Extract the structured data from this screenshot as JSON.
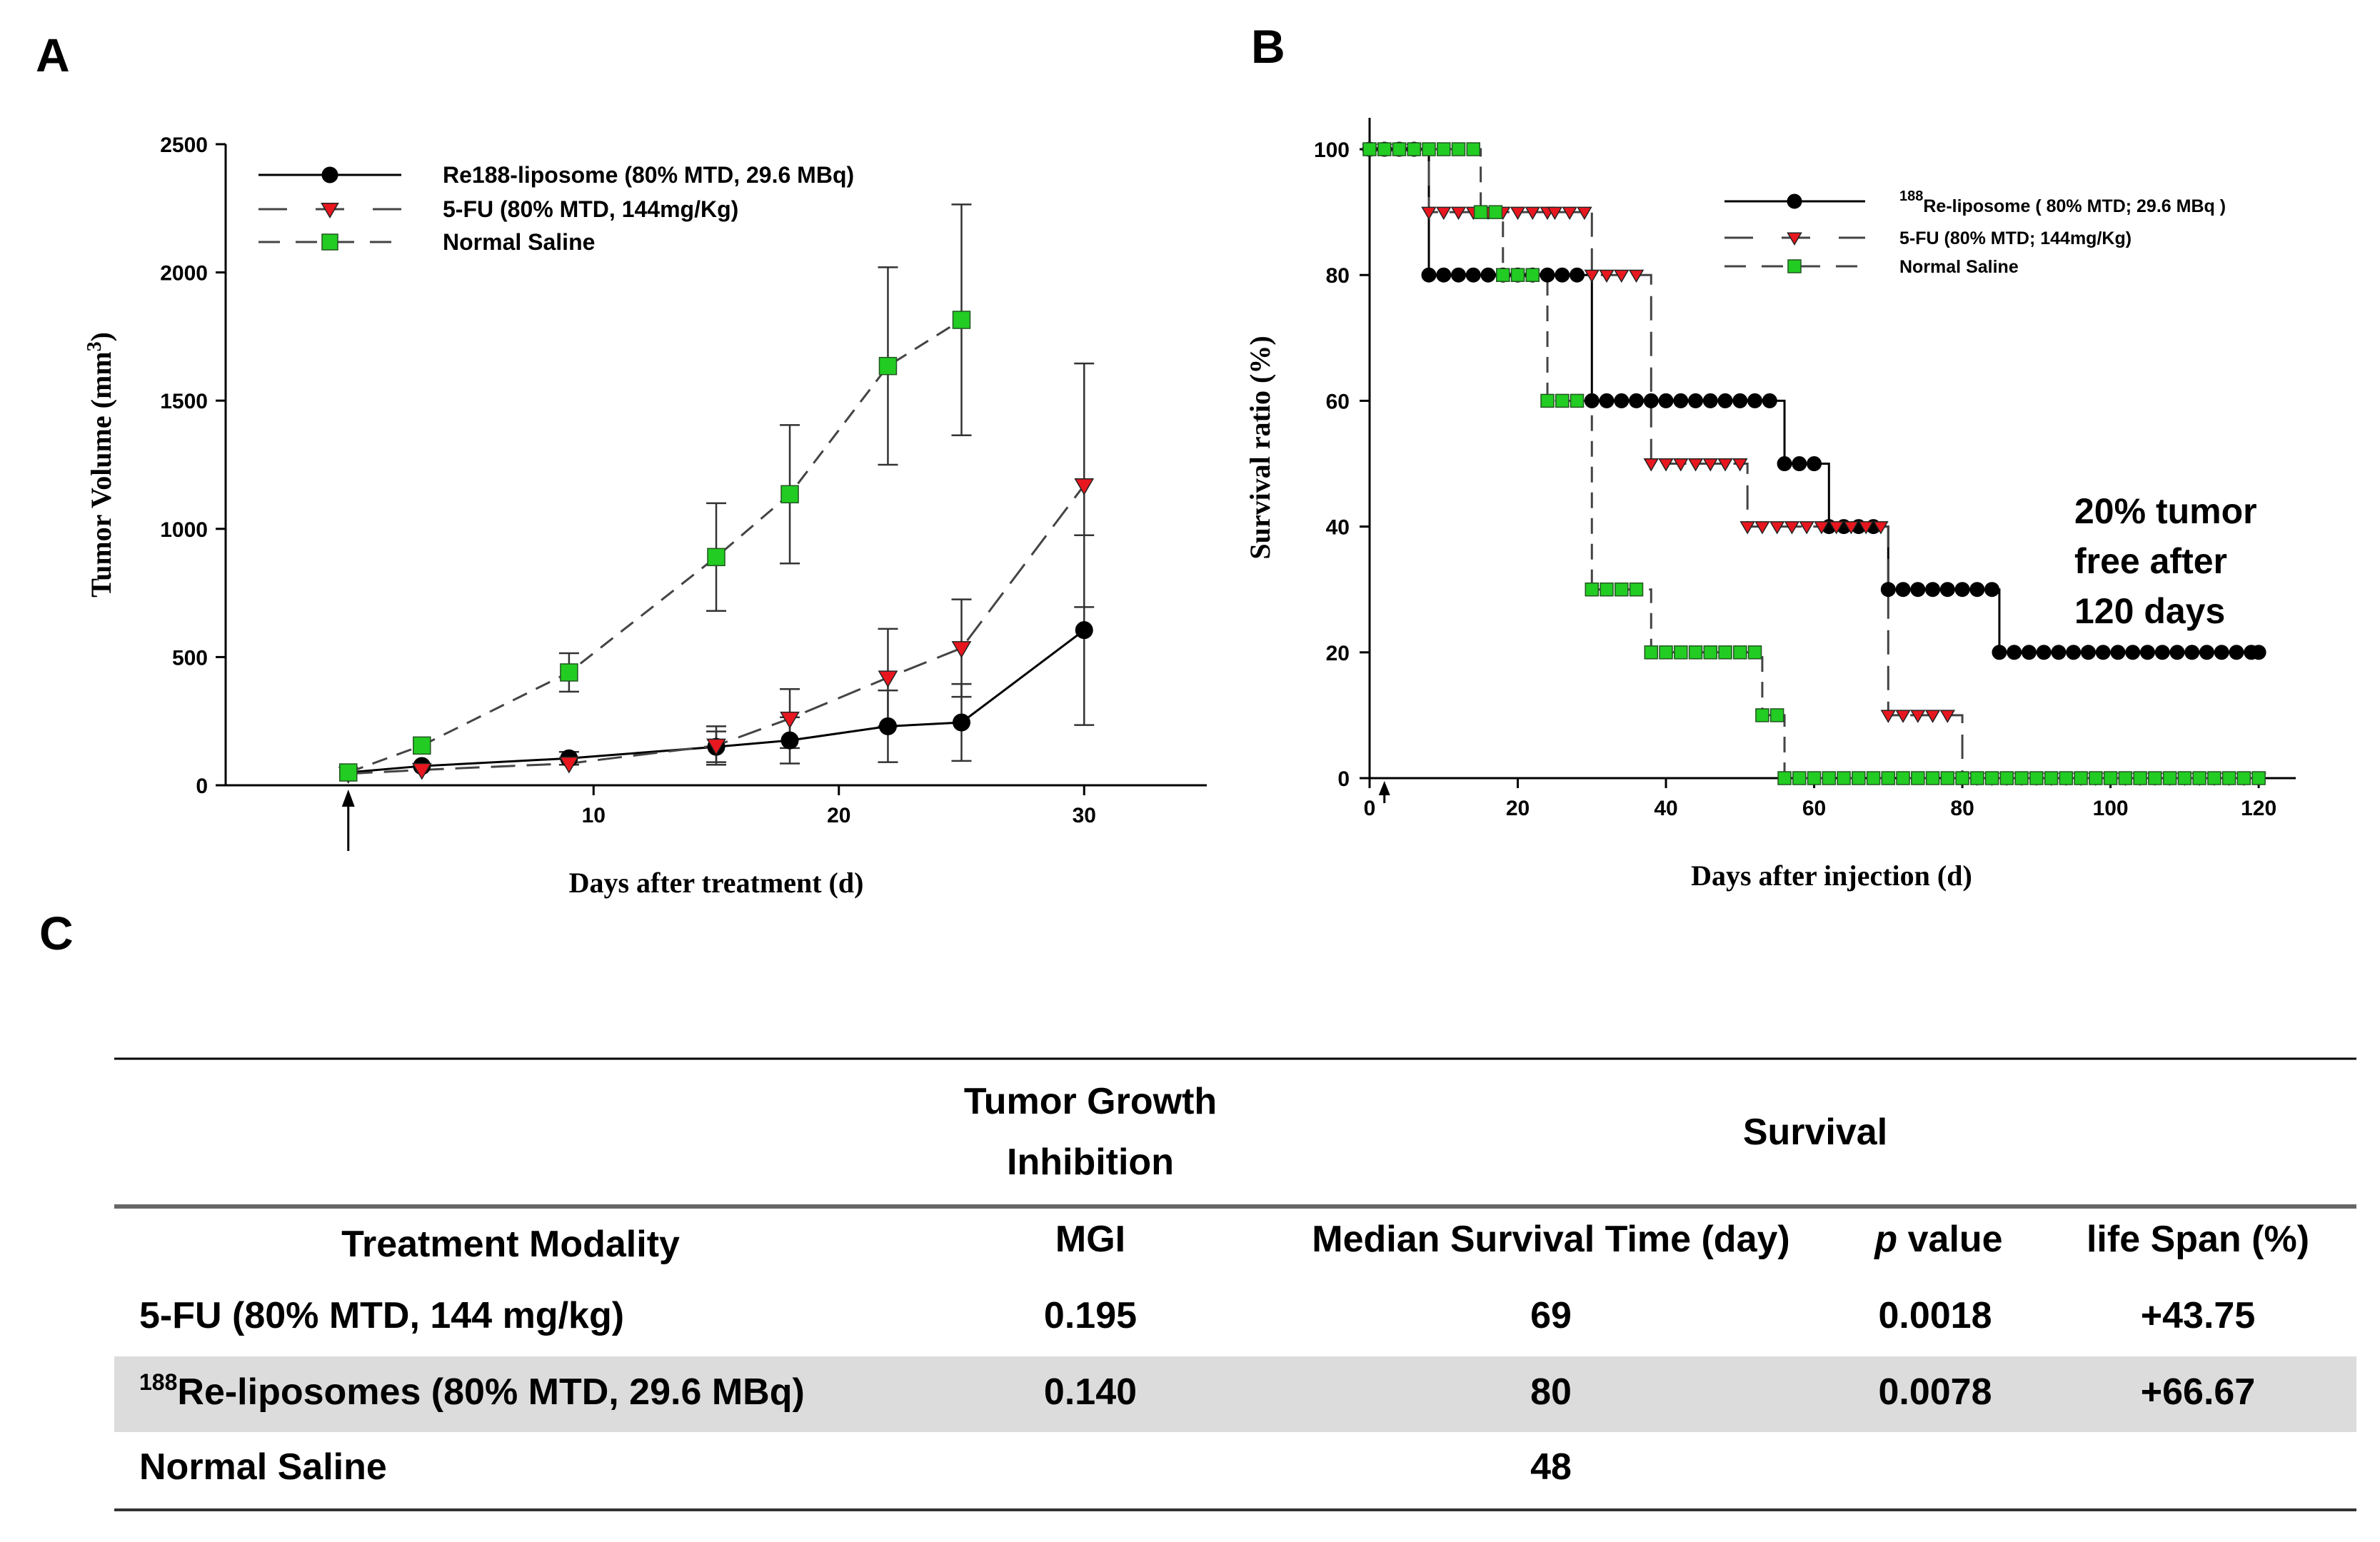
{
  "panel_labels": [
    "A",
    "B",
    "C"
  ],
  "colors": {
    "black": "#000000",
    "red": "#e8171f",
    "green": "#22cc22",
    "gray": "#444444",
    "shade": "#dcdcdc"
  },
  "chart_data": [
    {
      "type": "line",
      "panel": "A",
      "xlabel": "Days after treatment (d)",
      "ylabel_main": "Tumor Volume (mm",
      "ylabel_sup": "3",
      "ylabel_end": ")",
      "xlim": [
        -5,
        35
      ],
      "ylim": [
        0,
        2500
      ],
      "xticks": [
        10,
        20,
        30
      ],
      "yticks": [
        0,
        500,
        1000,
        1500,
        2000,
        2500
      ],
      "arrow_day": 0,
      "series": [
        {
          "name": "Re188-liposome (80% MTD, 29.6 MBq)",
          "marker": "circle",
          "dash": "solid",
          "x": [
            0,
            3,
            9,
            15,
            18,
            22,
            25,
            30
          ],
          "y": [
            50,
            75,
            105,
            150,
            175,
            230,
            245,
            605
          ],
          "err": [
            0,
            0,
            25,
            60,
            90,
            140,
            150,
            370
          ]
        },
        {
          "name": "5-FU (80% MTD, 144mg/Kg)",
          "marker": "triangle",
          "dash": "long",
          "x": [
            0,
            3,
            9,
            15,
            18,
            22,
            25,
            30
          ],
          "y": [
            45,
            60,
            85,
            155,
            260,
            420,
            535,
            1170
          ],
          "err": [
            0,
            0,
            0,
            75,
            115,
            190,
            190,
            475
          ]
        },
        {
          "name": "Normal Saline",
          "marker": "square",
          "dash": "short",
          "x": [
            0,
            3,
            9,
            15,
            18,
            22,
            25
          ],
          "y": [
            50,
            155,
            440,
            890,
            1135,
            1635,
            1815
          ],
          "err": [
            0,
            0,
            75,
            210,
            270,
            385,
            450
          ]
        }
      ]
    },
    {
      "type": "line",
      "panel": "B",
      "xlabel": "Days after injection (d)",
      "ylabel": "Survival ratio (%)",
      "xlim": [
        0,
        125
      ],
      "ylim": [
        0,
        105
      ],
      "xticks": [
        0,
        20,
        40,
        60,
        80,
        100,
        120
      ],
      "yticks": [
        0,
        20,
        40,
        60,
        80,
        100
      ],
      "arrow_day": 2,
      "annotation": [
        "20% tumor",
        "free after",
        "120 days"
      ],
      "series": [
        {
          "name": "Re-liposome ( 80% MTD; 29.6 MBq )",
          "name_sup": "188",
          "marker": "circle",
          "dash": "solid",
          "steps": [
            [
              0,
              100
            ],
            [
              8,
              80
            ],
            [
              30,
              60
            ],
            [
              56,
              50
            ],
            [
              62,
              40
            ],
            [
              70,
              30
            ],
            [
              85,
              20
            ],
            [
              120,
              20
            ]
          ]
        },
        {
          "name": "5-FU (80% MTD; 144mg/Kg)",
          "marker": "triangle",
          "dash": "long",
          "steps": [
            [
              0,
              100
            ],
            [
              8,
              90
            ],
            [
              25,
              90
            ],
            [
              30,
              80
            ],
            [
              38,
              50
            ],
            [
              51,
              40
            ],
            [
              70,
              10
            ],
            [
              80,
              0
            ],
            [
              120,
              0
            ]
          ]
        },
        {
          "name": "Normal Saline",
          "marker": "square",
          "dash": "short",
          "steps": [
            [
              0,
              100
            ],
            [
              15,
              90
            ],
            [
              18,
              80
            ],
            [
              24,
              60
            ],
            [
              30,
              30
            ],
            [
              38,
              20
            ],
            [
              53,
              10
            ],
            [
              56,
              0
            ],
            [
              120,
              0
            ]
          ]
        }
      ]
    }
  ],
  "table": {
    "group_header_left": [
      "Tumor Growth",
      "Inhibition"
    ],
    "group_header_right": "Survival",
    "columns": [
      "Treatment Modality",
      "MGI",
      "Median Survival Time (day)",
      "p",
      "value",
      "life Span (%)"
    ],
    "rows": [
      {
        "treatment": "5-FU (80% MTD, 144 mg/kg)",
        "sup": "",
        "mgi": "0.195",
        "median": "69",
        "p": "0.0018",
        "span": "+43.75"
      },
      {
        "treatment": "Re-liposomes  (80% MTD, 29.6 MBq)",
        "sup": "188",
        "mgi": "0.140",
        "median": "80",
        "p": "0.0078",
        "span": "+66.67"
      },
      {
        "treatment": "Normal Saline",
        "sup": "",
        "mgi": "",
        "median": "48",
        "p": "",
        "span": ""
      }
    ]
  }
}
